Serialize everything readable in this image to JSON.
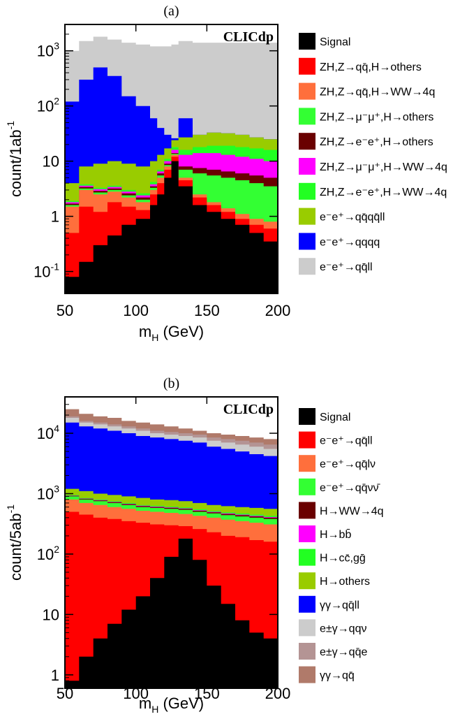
{
  "chart_data": [
    {
      "type": "area",
      "panel_label": "(a)",
      "watermark": "CLICdp",
      "xlabel": "m",
      "xlabel_sub": "H",
      "xlabel_unit": " (GeV)",
      "ylabel": "count/1ab",
      "ylabel_sup": "-1",
      "log_y": true,
      "xlim": [
        50,
        200
      ],
      "ylim": [
        0.04,
        3000
      ],
      "x_ticks": [
        "50",
        "100",
        "150",
        "200"
      ],
      "y_ticks": [
        {
          "base": "10",
          "exp": "-1",
          "v": 0.1
        },
        {
          "base": "1",
          "exp": "",
          "v": 1
        },
        {
          "base": "10",
          "exp": "",
          "v": 10
        },
        {
          "base": "10",
          "exp": "2",
          "v": 100
        },
        {
          "base": "10",
          "exp": "3",
          "v": 1000
        }
      ],
      "legend": [
        {
          "label": "Signal",
          "color": "#000000"
        },
        {
          "label": "ZH,Z→qq̄,H→others",
          "color": "#ff0000"
        },
        {
          "label": "ZH,Z→qq̄,H→WW→4q",
          "color": "#ff6f3c"
        },
        {
          "label": "ZH,Z→μ⁻μ⁺,H→others",
          "color": "#33ff33"
        },
        {
          "label": "ZH,Z→e⁻e⁺,H→others",
          "color": "#6a0000"
        },
        {
          "label": "ZH,Z→μ⁻μ⁺,H→WW→4q",
          "color": "#ff00ff"
        },
        {
          "label": "ZH,Z→e⁻e⁺,H→WW→4q",
          "color": "#22ff22"
        },
        {
          "label": "e⁻e⁺→qq̄qq̄ll",
          "color": "#99cc00"
        },
        {
          "label": "e⁻e⁺→qqqq",
          "color": "#0000ff"
        },
        {
          "label": "e⁻e⁺→qq̄ll",
          "color": "#cccccc"
        }
      ],
      "x": [
        50,
        60,
        70,
        80,
        90,
        100,
        110,
        115,
        120,
        125,
        130,
        140,
        150,
        160,
        170,
        180,
        190,
        200
      ],
      "cumulative_tops": {
        "Signal": [
          0.08,
          0.15,
          0.3,
          0.45,
          0.7,
          0.9,
          1.6,
          2.5,
          5,
          10,
          3.5,
          1.6,
          1.2,
          0.9,
          0.7,
          0.5,
          0.35,
          0.3
        ],
        "ZH,Z→qq̄,H→others": [
          0.5,
          1.5,
          1.2,
          1.8,
          1.5,
          1.3,
          2.5,
          4,
          7,
          12,
          4.5,
          2.2,
          1.6,
          1.2,
          0.9,
          0.7,
          0.6,
          0.4
        ],
        "ZH,Z→qq̄,H→WW→4q": [
          1.5,
          3,
          2.5,
          2.8,
          2.2,
          1.8,
          3,
          5,
          8,
          13,
          5,
          2.5,
          1.8,
          1.4,
          1.1,
          0.9,
          0.8,
          0.7
        ],
        "ZH,Z→μ⁻μ⁺,H→others": [
          1.6,
          3.2,
          2.7,
          3,
          2.4,
          2,
          3.3,
          5.5,
          8.5,
          13.5,
          7,
          6,
          5.5,
          5,
          4.5,
          4,
          3.5,
          2.8
        ],
        "ZH,Z→e⁻e⁺,H→others": [
          1.7,
          3.4,
          2.9,
          3.2,
          2.6,
          2.2,
          3.5,
          6,
          9,
          14,
          8,
          7.5,
          7,
          6.5,
          6,
          5.5,
          5,
          4
        ],
        "ZH,Z→μ⁻μ⁺,H→WW→4q": [
          1.8,
          3.6,
          3.1,
          3.4,
          2.8,
          2.4,
          3.8,
          6.5,
          10,
          16,
          13,
          14,
          14,
          13,
          12,
          11,
          10,
          9
        ],
        "ZH,Z→e⁻e⁺,H→WW→4q": [
          1.9,
          3.8,
          3.3,
          3.6,
          3,
          2.6,
          4.2,
          7,
          11,
          18,
          16,
          18,
          19,
          19,
          18,
          17,
          16,
          14
        ],
        "e⁻e⁺→qq̄qq̄ll": [
          4,
          8,
          9,
          10,
          9,
          8,
          10,
          13,
          17,
          24,
          27,
          30,
          33,
          32,
          30,
          27,
          25,
          22
        ],
        "e⁻e⁺→qqqq": [
          120,
          300,
          500,
          350,
          150,
          100,
          60,
          40,
          30,
          26,
          60,
          30,
          33,
          32,
          30,
          27,
          25,
          22
        ],
        "e⁻e⁺→qq̄ll": [
          1000,
          1500,
          1800,
          1600,
          1400,
          1300,
          1200,
          1200,
          1200,
          1300,
          1500,
          1400,
          1400,
          1400,
          1400,
          1400,
          1400,
          1300
        ]
      }
    },
    {
      "type": "area",
      "panel_label": "(b)",
      "watermark": "CLICdp",
      "xlabel": "m",
      "xlabel_sub": "H",
      "xlabel_unit": " (GeV)",
      "ylabel": "count/5ab",
      "ylabel_sup": "-1",
      "log_y": true,
      "xlim": [
        50,
        200
      ],
      "ylim": [
        0.6,
        40000
      ],
      "x_ticks": [
        "50",
        "100",
        "150",
        "200"
      ],
      "y_ticks": [
        {
          "base": "1",
          "exp": "",
          "v": 1
        },
        {
          "base": "10",
          "exp": "",
          "v": 10
        },
        {
          "base": "10",
          "exp": "2",
          "v": 100
        },
        {
          "base": "10",
          "exp": "3",
          "v": 1000
        },
        {
          "base": "10",
          "exp": "4",
          "v": 10000
        }
      ],
      "legend": [
        {
          "label": "Signal",
          "color": "#000000"
        },
        {
          "label": "e⁻e⁺→qq̄ll",
          "color": "#ff0000"
        },
        {
          "label": "e⁻e⁺→qq̄lν",
          "color": "#ff6f3c"
        },
        {
          "label": "e⁻e⁺→qq̄νν̄",
          "color": "#33ff33"
        },
        {
          "label": "H→WW→4q",
          "color": "#6a0000"
        },
        {
          "label": "H→bb̄",
          "color": "#ff00ff"
        },
        {
          "label": "H→cc̄,gḡ",
          "color": "#22ff22"
        },
        {
          "label": "H→others",
          "color": "#99cc00"
        },
        {
          "label": "γγ→qq̄ll",
          "color": "#0000ff"
        },
        {
          "label": "e±γ→qqν",
          "color": "#cccccc"
        },
        {
          "label": "e±γ→qq̄e",
          "color": "#b49494"
        },
        {
          "label": "γγ→qq̄",
          "color": "#b07a6a"
        }
      ],
      "x": [
        50,
        60,
        70,
        80,
        90,
        100,
        110,
        120,
        130,
        140,
        150,
        160,
        170,
        180,
        190,
        200
      ],
      "cumulative_tops": {
        "Signal": [
          0.8,
          2,
          4,
          7,
          12,
          20,
          40,
          90,
          180,
          80,
          30,
          15,
          8,
          5,
          4,
          3
        ],
        "e⁻e⁺→qq̄ll": [
          500,
          450,
          400,
          380,
          350,
          330,
          310,
          300,
          290,
          260,
          230,
          200,
          190,
          170,
          160,
          150
        ],
        "e⁻e⁺→qq̄lν": [
          800,
          700,
          650,
          600,
          560,
          520,
          500,
          480,
          460,
          430,
          400,
          370,
          350,
          330,
          310,
          300
        ],
        "e⁻e⁺→qq̄νν̄": [
          900,
          800,
          750,
          700,
          650,
          600,
          580,
          560,
          540,
          500,
          470,
          440,
          420,
          400,
          380,
          360
        ],
        "H→WW→4q": [
          920,
          820,
          770,
          720,
          670,
          620,
          600,
          580,
          560,
          520,
          490,
          460,
          440,
          420,
          400,
          380
        ],
        "H→bb̄": [
          930,
          830,
          780,
          730,
          680,
          630,
          610,
          590,
          570,
          530,
          500,
          470,
          450,
          430,
          410,
          390
        ],
        "H→cc̄,gḡ": [
          950,
          850,
          800,
          750,
          700,
          650,
          630,
          610,
          590,
          550,
          520,
          490,
          470,
          450,
          430,
          410
        ],
        "H→others": [
          1200,
          1100,
          1000,
          950,
          900,
          850,
          800,
          780,
          750,
          700,
          650,
          620,
          600,
          580,
          560,
          540
        ],
        "γγ→qq̄ll": [
          15000,
          13000,
          12000,
          11000,
          10000,
          9000,
          8500,
          8000,
          7500,
          7000,
          6000,
          5500,
          5000,
          4500,
          4200,
          4000
        ],
        "e±γ→qqν": [
          18000,
          15000,
          14000,
          13000,
          12000,
          11000,
          10000,
          9500,
          9000,
          8500,
          7500,
          7000,
          6500,
          6000,
          5500,
          5000
        ],
        "e±γ→qq̄e": [
          19000,
          16000,
          15000,
          14000,
          13000,
          12000,
          11000,
          10500,
          10000,
          9500,
          8500,
          8000,
          7500,
          7000,
          6500,
          6000
        ],
        "γγ→qq̄": [
          25000,
          21000,
          19000,
          18000,
          16000,
          15000,
          14000,
          13000,
          12000,
          11000,
          10000,
          9500,
          9000,
          8500,
          8000,
          7500
        ]
      }
    }
  ]
}
